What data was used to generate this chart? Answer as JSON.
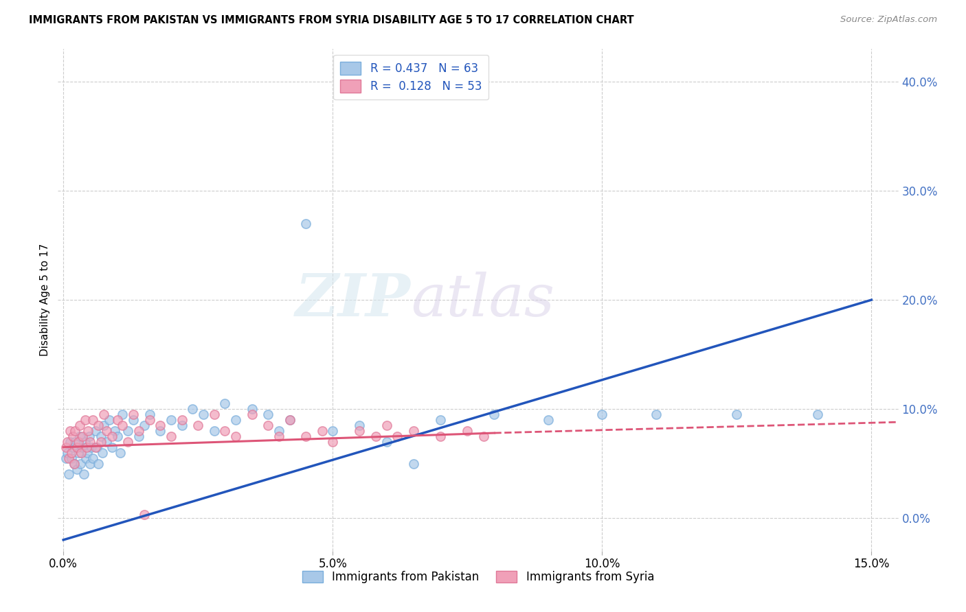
{
  "title": "IMMIGRANTS FROM PAKISTAN VS IMMIGRANTS FROM SYRIA DISABILITY AGE 5 TO 17 CORRELATION CHART",
  "source": "Source: ZipAtlas.com",
  "ylabel": "Disability Age 5 to 17",
  "xlabel_vals": [
    0.0,
    5.0,
    10.0,
    15.0
  ],
  "ylabel_vals": [
    0.0,
    10.0,
    20.0,
    30.0,
    40.0
  ],
  "xlim": [
    -0.1,
    15.5
  ],
  "ylim": [
    -3.0,
    43.0
  ],
  "pakistan_R": 0.437,
  "pakistan_N": 63,
  "syria_R": 0.128,
  "syria_N": 53,
  "pakistan_color": "#a8c8e8",
  "syria_color": "#f0a0b8",
  "pakistan_edge_color": "#7aaedc",
  "syria_edge_color": "#e07898",
  "pakistan_line_color": "#2255bb",
  "syria_line_color": "#dd5577",
  "legend_label_pakistan": "Immigrants from Pakistan",
  "legend_label_syria": "Immigrants from Syria",
  "background_color": "#ffffff",
  "grid_color": "#cccccc",
  "watermark_zip": "ZIP",
  "watermark_atlas": "atlas",
  "pakistan_x": [
    0.05,
    0.08,
    0.1,
    0.12,
    0.15,
    0.18,
    0.2,
    0.22,
    0.25,
    0.28,
    0.3,
    0.32,
    0.35,
    0.38,
    0.4,
    0.42,
    0.45,
    0.48,
    0.5,
    0.52,
    0.55,
    0.6,
    0.62,
    0.65,
    0.7,
    0.72,
    0.75,
    0.8,
    0.85,
    0.9,
    0.95,
    1.0,
    1.05,
    1.1,
    1.2,
    1.3,
    1.4,
    1.5,
    1.6,
    1.8,
    2.0,
    2.2,
    2.4,
    2.6,
    2.8,
    3.0,
    3.2,
    3.5,
    3.8,
    4.0,
    4.2,
    4.5,
    5.0,
    5.5,
    6.0,
    6.5,
    7.0,
    8.0,
    9.0,
    10.0,
    11.0,
    12.5,
    14.0
  ],
  "pakistan_y": [
    5.5,
    6.0,
    4.0,
    7.0,
    5.5,
    6.5,
    5.0,
    7.0,
    4.5,
    6.0,
    7.5,
    5.0,
    6.5,
    4.0,
    7.0,
    5.5,
    6.0,
    7.5,
    5.0,
    6.5,
    5.5,
    8.0,
    6.5,
    5.0,
    7.5,
    6.0,
    8.5,
    7.0,
    9.0,
    6.5,
    8.0,
    7.5,
    6.0,
    9.5,
    8.0,
    9.0,
    7.5,
    8.5,
    9.5,
    8.0,
    9.0,
    8.5,
    10.0,
    9.5,
    8.0,
    10.5,
    9.0,
    10.0,
    9.5,
    8.0,
    9.0,
    27.0,
    8.0,
    8.5,
    7.0,
    5.0,
    9.0,
    9.5,
    9.0,
    9.5,
    9.5,
    9.5,
    9.5
  ],
  "syria_x": [
    0.05,
    0.08,
    0.1,
    0.12,
    0.15,
    0.18,
    0.2,
    0.22,
    0.25,
    0.28,
    0.3,
    0.33,
    0.36,
    0.4,
    0.43,
    0.46,
    0.5,
    0.55,
    0.6,
    0.65,
    0.7,
    0.75,
    0.8,
    0.9,
    1.0,
    1.1,
    1.2,
    1.3,
    1.4,
    1.5,
    1.6,
    1.8,
    2.0,
    2.2,
    2.5,
    2.8,
    3.0,
    3.2,
    3.5,
    3.8,
    4.0,
    4.2,
    4.5,
    4.8,
    5.0,
    5.5,
    5.8,
    6.0,
    6.2,
    6.5,
    7.0,
    7.5,
    7.8
  ],
  "syria_y": [
    6.5,
    7.0,
    5.5,
    8.0,
    6.0,
    7.5,
    5.0,
    8.0,
    6.5,
    7.0,
    8.5,
    6.0,
    7.5,
    9.0,
    6.5,
    8.0,
    7.0,
    9.0,
    6.5,
    8.5,
    7.0,
    9.5,
    8.0,
    7.5,
    9.0,
    8.5,
    7.0,
    9.5,
    8.0,
    0.3,
    9.0,
    8.5,
    7.5,
    9.0,
    8.5,
    9.5,
    8.0,
    7.5,
    9.5,
    8.5,
    7.5,
    9.0,
    7.5,
    8.0,
    7.0,
    8.0,
    7.5,
    8.5,
    7.5,
    8.0,
    7.5,
    8.0,
    7.5
  ],
  "pak_line_x0": 0.0,
  "pak_line_y0": -2.0,
  "pak_line_x1": 15.0,
  "pak_line_y1": 20.0,
  "syr_line_x0": 0.0,
  "syr_line_y0": 6.5,
  "syr_line_x1": 8.0,
  "syr_line_y1": 7.8,
  "syr_dash_x0": 8.0,
  "syr_dash_y0": 7.8,
  "syr_dash_x1": 15.5,
  "syr_dash_y1": 8.8
}
